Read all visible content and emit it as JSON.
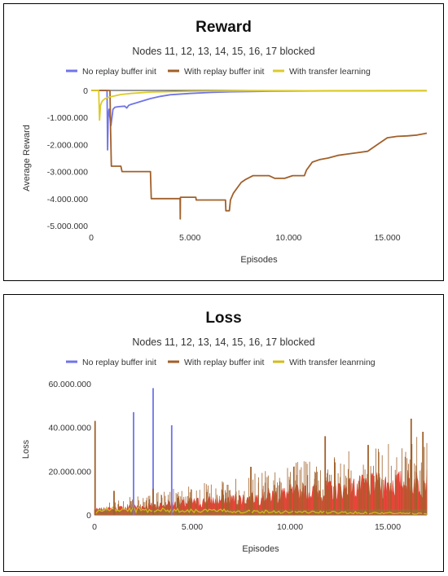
{
  "charts": [
    {
      "id": "reward",
      "chart_data": {
        "type": "line",
        "title": "Reward",
        "subtitle": "Nodes 11, 12, 13, 14, 15, 16, 17 blocked",
        "xlabel": "Episodes",
        "ylabel": "Average Reward",
        "xlim": [
          0,
          17000
        ],
        "ylim": [
          -5000000,
          0
        ],
        "xticks": [
          {
            "v": 0,
            "label": "0"
          },
          {
            "v": 5000,
            "label": "5.000"
          },
          {
            "v": 10000,
            "label": "10.000"
          },
          {
            "v": 15000,
            "label": "15.000"
          }
        ],
        "yticks": [
          {
            "v": 0,
            "label": "0"
          },
          {
            "v": -1000000,
            "label": "-1.000.000"
          },
          {
            "v": -2000000,
            "label": "-2.000.000"
          },
          {
            "v": -3000000,
            "label": "-3.000.000"
          },
          {
            "v": -4000000,
            "label": "-4.000.000"
          },
          {
            "v": -5000000,
            "label": "-5.000.000"
          }
        ],
        "grid": false,
        "legend_position": "top",
        "series": [
          {
            "name": "No replay buffer init",
            "color": "#6f74e8",
            "points": [
              [
                0,
                0
              ],
              [
                800,
                0
              ],
              [
                830,
                -2200000
              ],
              [
                860,
                -1000000
              ],
              [
                900,
                -700000
              ],
              [
                1000,
                -1300000
              ],
              [
                1100,
                -700000
              ],
              [
                1200,
                -620000
              ],
              [
                1400,
                -600000
              ],
              [
                1700,
                -580000
              ],
              [
                1800,
                -650000
              ],
              [
                1900,
                -550000
              ],
              [
                2000,
                -520000
              ],
              [
                2200,
                -480000
              ],
              [
                2500,
                -410000
              ],
              [
                3000,
                -300000
              ],
              [
                3500,
                -220000
              ],
              [
                4000,
                -160000
              ],
              [
                5000,
                -110000
              ],
              [
                6000,
                -75000
              ],
              [
                7000,
                -50000
              ],
              [
                9000,
                -30000
              ],
              [
                12000,
                -15000
              ],
              [
                17000,
                -8000
              ]
            ]
          },
          {
            "name": "With replay buffer init",
            "color": "#a0602a",
            "points": [
              [
                0,
                0
              ],
              [
                950,
                0
              ],
              [
                980,
                -1500000
              ],
              [
                1020,
                -2800000
              ],
              [
                1500,
                -2800000
              ],
              [
                1560,
                -3000000
              ],
              [
                3000,
                -3000000
              ],
              [
                3040,
                -4000000
              ],
              [
                4500,
                -4000000
              ],
              [
                4510,
                -4750000
              ],
              [
                4520,
                -3950000
              ],
              [
                5300,
                -3950000
              ],
              [
                5320,
                -4050000
              ],
              [
                6800,
                -4050000
              ],
              [
                6820,
                -4450000
              ],
              [
                7000,
                -4450000
              ],
              [
                7050,
                -4050000
              ],
              [
                7200,
                -3800000
              ],
              [
                7400,
                -3600000
              ],
              [
                7600,
                -3400000
              ],
              [
                7800,
                -3300000
              ],
              [
                8200,
                -3150000
              ],
              [
                9000,
                -3150000
              ],
              [
                9300,
                -3250000
              ],
              [
                9800,
                -3250000
              ],
              [
                10200,
                -3150000
              ],
              [
                10800,
                -3150000
              ],
              [
                10900,
                -2950000
              ],
              [
                11100,
                -2750000
              ],
              [
                11200,
                -2650000
              ],
              [
                11600,
                -2550000
              ],
              [
                12000,
                -2500000
              ],
              [
                12500,
                -2400000
              ],
              [
                13000,
                -2350000
              ],
              [
                13500,
                -2300000
              ],
              [
                14000,
                -2250000
              ],
              [
                14500,
                -2000000
              ],
              [
                15000,
                -1750000
              ],
              [
                15500,
                -1700000
              ],
              [
                16000,
                -1680000
              ],
              [
                16500,
                -1650000
              ],
              [
                17000,
                -1580000
              ]
            ]
          },
          {
            "name": "With transfer learning",
            "color": "#dccb2a",
            "points": [
              [
                0,
                0
              ],
              [
                380,
                0
              ],
              [
                420,
                -1100000
              ],
              [
                470,
                -550000
              ],
              [
                550,
                -400000
              ],
              [
                700,
                -300000
              ],
              [
                900,
                -250000
              ],
              [
                1200,
                -200000
              ],
              [
                1500,
                -150000
              ],
              [
                2000,
                -110000
              ],
              [
                3000,
                -60000
              ],
              [
                5000,
                -30000
              ],
              [
                8000,
                -15000
              ],
              [
                12000,
                -8000
              ],
              [
                17000,
                -4000
              ]
            ]
          }
        ]
      }
    },
    {
      "id": "loss",
      "chart_data": {
        "type": "line",
        "title": "Loss",
        "subtitle": "Nodes 11, 12, 13, 14, 15, 16, 17 blocked",
        "xlabel": "Episodes",
        "ylabel": "Loss",
        "xlim": [
          0,
          17000
        ],
        "ylim": [
          0,
          60000000
        ],
        "xticks": [
          {
            "v": 0,
            "label": "0"
          },
          {
            "v": 5000,
            "label": "5.000"
          },
          {
            "v": 10000,
            "label": "10.000"
          },
          {
            "v": 15000,
            "label": "15.000"
          }
        ],
        "yticks": [
          {
            "v": 0,
            "label": "0"
          },
          {
            "v": 20000000,
            "label": "20.000.000"
          },
          {
            "v": 40000000,
            "label": "40.000.000"
          },
          {
            "v": 60000000,
            "label": "60.000.000"
          }
        ],
        "grid": false,
        "legend_position": "top",
        "fill_color": "#e8443a",
        "series": [
          {
            "name": "No replay buffer init",
            "color": "#6f74e8",
            "spikes": [
              [
                2000,
                47000000
              ],
              [
                3000,
                58000000
              ],
              [
                3950,
                41000000
              ]
            ],
            "baseline": [
              [
                0,
                1500000
              ],
              [
                4000,
                2500000
              ],
              [
                17000,
                3000000
              ]
            ]
          },
          {
            "name": "With replay buffer init",
            "color": "#a0602a",
            "spikes": [
              [
                30,
                43000000
              ],
              [
                1000,
                11000000
              ],
              [
                3000,
                12000000
              ],
              [
                8000,
                22000000
              ],
              [
                10200,
                22000000
              ],
              [
                11800,
                36000000
              ],
              [
                14000,
                32000000
              ],
              [
                16200,
                44000000
              ],
              [
                16800,
                38000000
              ]
            ],
            "envelope": [
              [
                0,
                3000000
              ],
              [
                2000,
                5000000
              ],
              [
                4000,
                7000000
              ],
              [
                6000,
                9000000
              ],
              [
                8000,
                11000000
              ],
              [
                10000,
                14000000
              ],
              [
                12000,
                16000000
              ],
              [
                14000,
                19000000
              ],
              [
                16000,
                21000000
              ],
              [
                17000,
                22000000
              ]
            ]
          },
          {
            "name": "With transfer leanrning",
            "color": "#d2bd1a",
            "baseline": [
              [
                0,
                800000
              ],
              [
                500,
                2500000
              ],
              [
                17000,
                600000
              ]
            ]
          }
        ]
      }
    }
  ]
}
